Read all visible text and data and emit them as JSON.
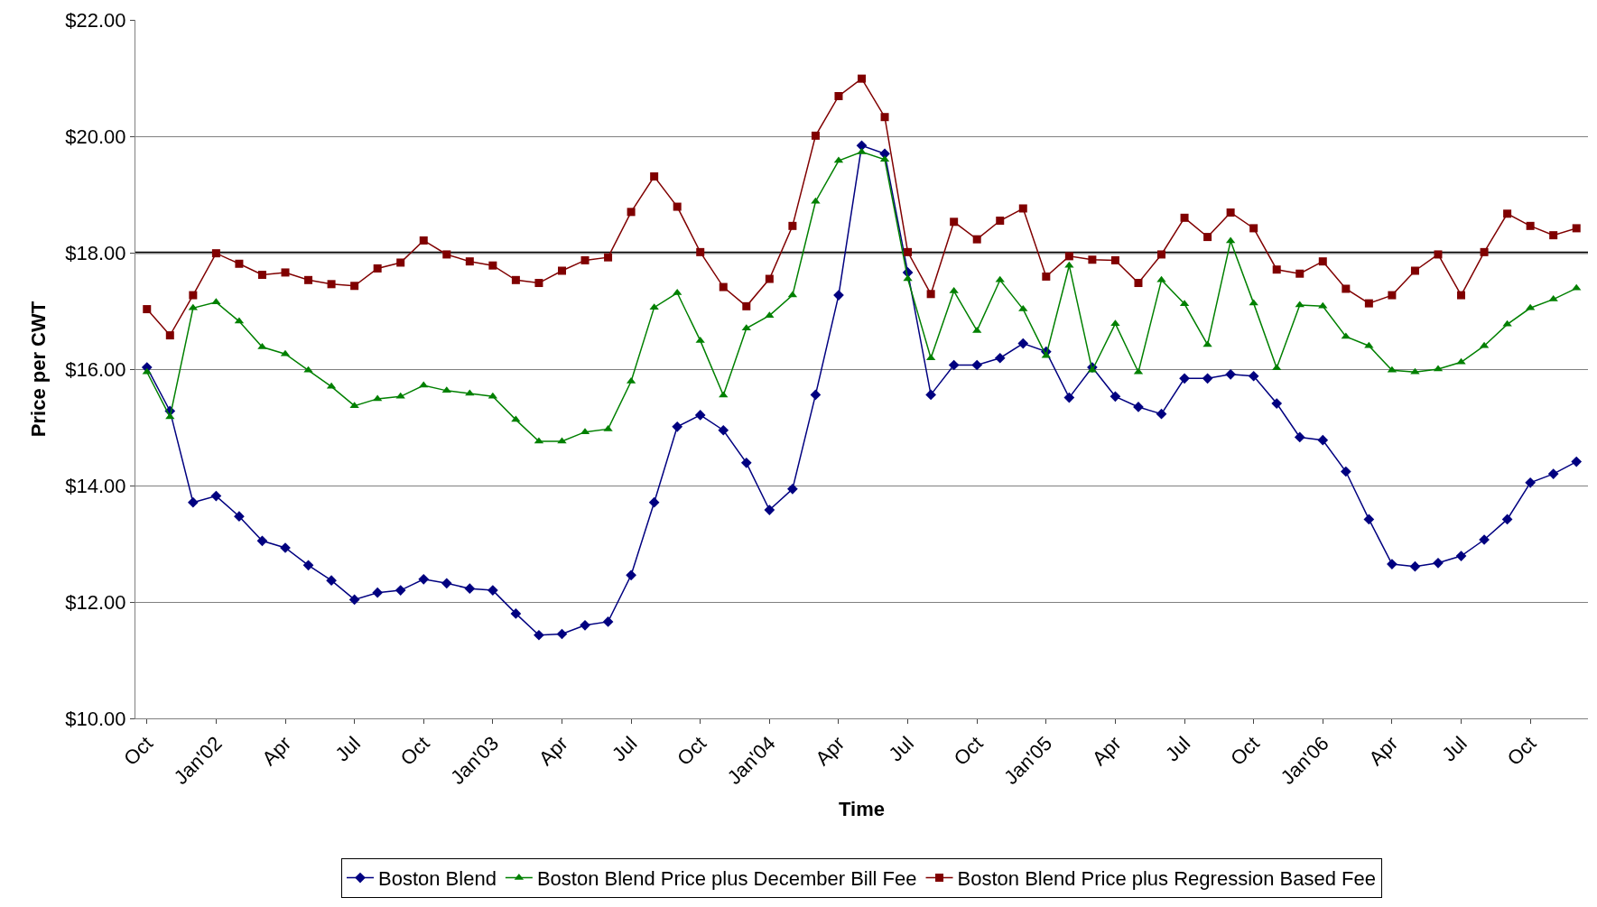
{
  "chart_data": {
    "type": "line",
    "xlabel": "Time",
    "ylabel": "Price per CWT",
    "categories": [
      "Oct",
      null,
      null,
      "Jan'02",
      null,
      null,
      "Apr",
      null,
      null,
      "Jul",
      null,
      null,
      "Oct",
      null,
      null,
      "Jan'03",
      null,
      null,
      "Apr",
      null,
      null,
      "Jul",
      null,
      null,
      "Oct",
      null,
      null,
      "Jan'04",
      null,
      null,
      "Apr",
      null,
      null,
      "Jul",
      null,
      null,
      "Oct",
      null,
      null,
      "Jan'05",
      null,
      null,
      "Apr",
      null,
      null,
      "Jul",
      null,
      null,
      "Oct",
      null,
      null,
      "Jan'06",
      null,
      null,
      "Apr",
      null,
      null,
      "Jul",
      null,
      null,
      "Oct",
      null,
      null
    ],
    "ylim": [
      10,
      22
    ],
    "yticks": [
      {
        "value": 10,
        "label": "$10.00"
      },
      {
        "value": 12,
        "label": "$12.00"
      },
      {
        "value": 14,
        "label": "$14.00"
      },
      {
        "value": 16,
        "label": "$16.00"
      },
      {
        "value": 18,
        "label": "$18.00"
      },
      {
        "value": 20,
        "label": "$20.00"
      },
      {
        "value": 22,
        "label": "$22.00"
      }
    ],
    "grid": "y",
    "legend": "bottom",
    "ref_lines": [
      {
        "axis": "y",
        "value": 18,
        "color": "#000000",
        "line_style": "solid"
      }
    ],
    "series": [
      {
        "name": "Boston Blend",
        "color": "#000080",
        "marker": "diamond",
        "values": [
          16.03,
          15.28,
          13.71,
          13.82,
          13.47,
          13.05,
          12.93,
          12.63,
          12.37,
          12.04,
          12.16,
          12.2,
          12.39,
          12.32,
          12.23,
          12.2,
          11.8,
          11.43,
          11.45,
          11.6,
          11.66,
          12.46,
          13.71,
          15.01,
          15.21,
          14.95,
          14.39,
          13.58,
          13.94,
          15.56,
          17.27,
          19.84,
          19.7,
          17.66,
          15.56,
          16.07,
          16.07,
          16.19,
          16.44,
          16.3,
          15.51,
          16.03,
          15.53,
          15.35,
          15.23,
          15.84,
          15.84,
          15.91,
          15.88,
          15.41,
          14.83,
          14.78,
          14.24,
          13.42,
          12.65,
          12.61,
          12.67,
          12.79,
          13.07,
          13.42,
          14.05,
          14.2,
          14.41
        ]
      },
      {
        "name": "Boston Blend Price plus December Bill Fee",
        "color": "#008000",
        "marker": "triangle",
        "values": [
          15.95,
          15.18,
          17.05,
          17.15,
          16.82,
          16.38,
          16.26,
          15.98,
          15.7,
          15.37,
          15.49,
          15.53,
          15.72,
          15.63,
          15.58,
          15.53,
          15.13,
          14.76,
          14.76,
          14.92,
          14.97,
          15.79,
          17.06,
          17.31,
          16.49,
          15.55,
          16.7,
          16.92,
          17.27,
          18.88,
          19.58,
          19.73,
          19.6,
          17.55,
          16.19,
          17.34,
          16.66,
          17.53,
          17.03,
          16.23,
          17.78,
          15.98,
          16.78,
          15.95,
          17.53,
          17.12,
          16.42,
          18.2,
          17.13,
          16.02,
          17.1,
          17.08,
          16.56,
          16.4,
          15.98,
          15.95,
          16.0,
          16.12,
          16.4,
          16.77,
          17.05,
          17.2,
          17.39
        ]
      },
      {
        "name": "Boston Blend Price plus Regression Based Fee",
        "color": "#800000",
        "marker": "square",
        "values": [
          17.03,
          16.58,
          17.27,
          17.99,
          17.81,
          17.62,
          17.66,
          17.53,
          17.46,
          17.43,
          17.73,
          17.83,
          18.21,
          17.97,
          17.85,
          17.78,
          17.53,
          17.48,
          17.69,
          17.87,
          17.92,
          18.7,
          19.31,
          18.79,
          18.01,
          17.41,
          17.08,
          17.55,
          18.46,
          20.01,
          20.69,
          20.99,
          20.33,
          18.01,
          17.29,
          18.53,
          18.23,
          18.55,
          18.76,
          17.59,
          17.94,
          17.88,
          17.87,
          17.48,
          17.97,
          18.6,
          18.27,
          18.69,
          18.42,
          17.71,
          17.64,
          17.85,
          17.38,
          17.13,
          17.27,
          17.69,
          17.97,
          17.27,
          18.01,
          18.67,
          18.46,
          18.3,
          18.42
        ]
      }
    ]
  }
}
